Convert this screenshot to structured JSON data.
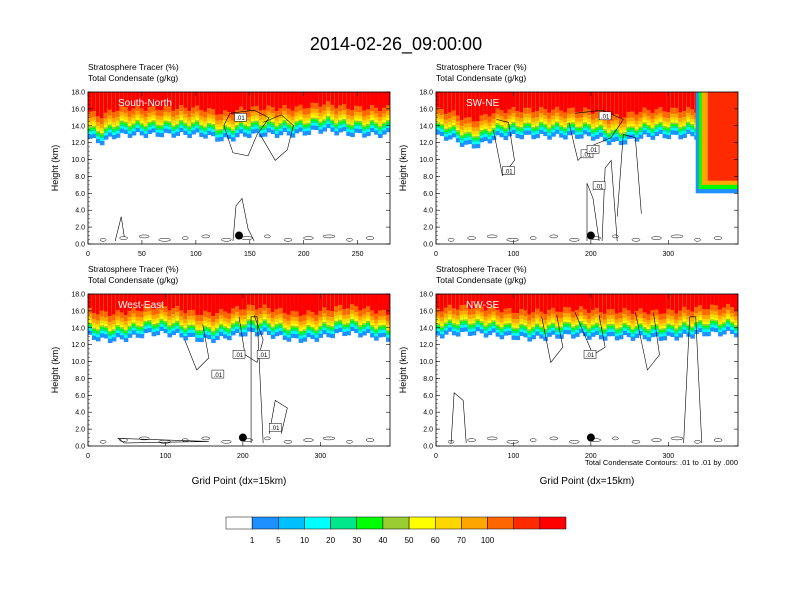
{
  "figure": {
    "title": "2014-02-26_09:00:00",
    "footnote": "Total Condensate Contours: .01 to .01 by .000",
    "colorbar": {
      "colors": [
        "#ffffff",
        "#1e90ff",
        "#00bfff",
        "#00ffff",
        "#00e68a",
        "#00ff00",
        "#9acd32",
        "#ffff00",
        "#ffd700",
        "#ffa500",
        "#ff6600",
        "#ff2a00",
        "#ff0000"
      ],
      "labels": [
        "1",
        "5",
        "10",
        "20",
        "30",
        "40",
        "50",
        "60",
        "70",
        "100"
      ]
    }
  },
  "chart_data": [
    {
      "type": "heatmap",
      "panel": "South-North",
      "title_lines": [
        "Stratosphere Tracer   (%)",
        "Total Condensate   (g/kg)"
      ],
      "xlabel": "",
      "ylabel": "Height (km)",
      "xlim": [
        0,
        280
      ],
      "ylim": [
        0,
        18
      ],
      "xticks": [
        "0",
        "50",
        "100",
        "150",
        "200",
        "250"
      ],
      "yticks": [
        "0.0",
        "2.0",
        "4.0",
        "6.0",
        "8.0",
        "10.0",
        "12.0",
        "14.0",
        "16.0",
        "18.0"
      ],
      "contour_labels": [
        ".01"
      ],
      "marker": {
        "x": 140,
        "y": 1.0
      }
    },
    {
      "type": "heatmap",
      "panel": "SW-NE",
      "title_lines": [
        "Stratosphere Tracer   (%)",
        "Total Condensate   (g/kg)"
      ],
      "xlabel": "",
      "ylabel": "Height (km)",
      "xlim": [
        0,
        390
      ],
      "ylim": [
        0,
        18
      ],
      "xticks": [
        "0",
        "100",
        "200",
        "300"
      ],
      "yticks": [
        "0.0",
        "2.0",
        "4.0",
        "6.0",
        "8.0",
        "10.0",
        "12.0",
        "14.0",
        "16.0",
        "18.0"
      ],
      "contour_labels": [
        ".01",
        ".01",
        ".01",
        ".01",
        ".01"
      ],
      "marker": {
        "x": 200,
        "y": 1.0
      }
    },
    {
      "type": "heatmap",
      "panel": "West-East",
      "title_lines": [
        "Stratosphere Tracer   (%)",
        "Total Condensate   (g/kg)"
      ],
      "xlabel": "Grid Point (dx=15km)",
      "ylabel": "Height (km)",
      "xlim": [
        0,
        390
      ],
      "ylim": [
        0,
        18
      ],
      "xticks": [
        "0",
        "100",
        "200",
        "300"
      ],
      "yticks": [
        "0.0",
        "2.0",
        "4.0",
        "6.0",
        "8.0",
        "10.0",
        "12.0",
        "14.0",
        "16.0",
        "18.0"
      ],
      "contour_labels": [
        ".01",
        ".01",
        ".01",
        ".01"
      ],
      "marker": {
        "x": 200,
        "y": 1.0
      }
    },
    {
      "type": "heatmap",
      "panel": "NW-SE",
      "title_lines": [
        "Stratosphere Tracer   (%)",
        "Total Condensate   (g/kg)"
      ],
      "xlabel": "Grid Point (dx=15km)",
      "ylabel": "Height (km)",
      "xlim": [
        0,
        390
      ],
      "ylim": [
        0,
        18
      ],
      "xticks": [
        "0",
        "100",
        "200",
        "300"
      ],
      "yticks": [
        "0.0",
        "2.0",
        "4.0",
        "6.0",
        "8.0",
        "10.0",
        "12.0",
        "14.0",
        "16.0",
        "18.0"
      ],
      "contour_labels": [
        ".01"
      ],
      "marker": {
        "x": 200,
        "y": 1.0
      }
    }
  ]
}
